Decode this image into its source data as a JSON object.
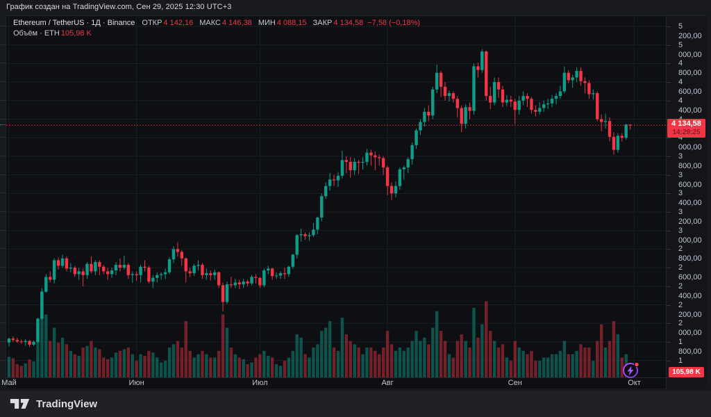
{
  "header": {
    "attribution": "График создан на TradingView.com, Сен 29, 2025 12:30 UTC+3"
  },
  "legend": {
    "symbol_title": "Ethereum / TetherUS · 1Д · Binance",
    "ohlc": [
      {
        "label": "ОТКР",
        "value": "4 142,16"
      },
      {
        "label": "МАКС",
        "value": "4 146,38"
      },
      {
        "label": "МИН",
        "value": "4 088,15"
      },
      {
        "label": "ЗАКР",
        "value": "4 134,58"
      }
    ],
    "change": "−7,58 (−0,18%)",
    "volume_row": {
      "label": "Объём · ETH",
      "value": "105,98 K"
    }
  },
  "last_price": {
    "value": 4134.58,
    "display": "4 134,58",
    "countdown": "14:29:25"
  },
  "volume_badge": "105,98 K",
  "footer": {
    "brand": "TradingView"
  },
  "colors": {
    "up": "#0f9d8a",
    "down": "#f23645",
    "vol_up": "rgba(15,157,138,0.48)",
    "vol_down": "rgba(242,54,69,0.45)",
    "grid": "#1b1e26",
    "accent_red": "#f23645",
    "purple": "#a04ef5",
    "dot_red": "#fb4a3e"
  },
  "price_axis": {
    "gridlines": [
      {
        "price": 5200,
        "label": "5 200,00"
      },
      {
        "price": 5000,
        "label": "5 000,00"
      },
      {
        "price": 4800,
        "label": "4 800,00"
      },
      {
        "price": 4600,
        "label": "4 600,00"
      },
      {
        "price": 4400,
        "label": "4 400,00"
      },
      {
        "price": 4200,
        "label": "4 200,00"
      },
      {
        "price": 4000,
        "label": "4 000,00"
      },
      {
        "price": 3800,
        "label": "3 800,00"
      },
      {
        "price": 3600,
        "label": "3 600,00"
      },
      {
        "price": 3400,
        "label": "3 400,00"
      },
      {
        "price": 3200,
        "label": "3 200,00"
      },
      {
        "price": 3000,
        "label": "3 000,00"
      },
      {
        "price": 2800,
        "label": "2 800,00"
      },
      {
        "price": 2600,
        "label": "2 600,00"
      },
      {
        "price": 2400,
        "label": "2 400,00"
      },
      {
        "price": 2200,
        "label": "2 200,00"
      },
      {
        "price": 2000,
        "label": "2 000,00"
      },
      {
        "price": 1800,
        "label": "1 800,00"
      },
      {
        "price": 1600,
        "label": "1 600,00"
      }
    ]
  },
  "chart_data": {
    "type": "candlestick",
    "title": "Ethereum / TetherUS",
    "interval": "1Д",
    "exchange": "Binance",
    "date_range": "2025-05-01 to 2025-09-29",
    "today_ohlc": {
      "open": 4142.16,
      "high": 4146.38,
      "low": 4088.15,
      "close": 4134.58,
      "change": -7.58,
      "change_pct": -0.18
    },
    "today_volume_k_eth": 105.98,
    "price_axis_visible_range": [
      1418,
      5312
    ],
    "grid": true,
    "months": [
      {
        "label": "Май",
        "index": 0
      },
      {
        "label": "Июн",
        "index": 31
      },
      {
        "label": "Июл",
        "index": 61
      },
      {
        "label": "Авг",
        "index": 92
      },
      {
        "label": "Сен",
        "index": 123
      },
      {
        "label": "Окт",
        "index": 152
      }
    ],
    "volume_unit": "K ETH",
    "candles_format": [
      "open",
      "high",
      "low",
      "close",
      "volume_k"
    ],
    "candles": [
      [
        1793,
        1845,
        1750,
        1835,
        620
      ],
      [
        1835,
        1860,
        1800,
        1820,
        580
      ],
      [
        1820,
        1845,
        1790,
        1805,
        400
      ],
      [
        1805,
        1825,
        1780,
        1800,
        350
      ],
      [
        1800,
        1830,
        1760,
        1810,
        420
      ],
      [
        1810,
        1820,
        1745,
        1770,
        540
      ],
      [
        1770,
        1815,
        1755,
        1800,
        480
      ],
      [
        1800,
        2060,
        1790,
        2050,
        1650
      ],
      [
        2050,
        2380,
        2040,
        2340,
        2600
      ],
      [
        2340,
        2530,
        2330,
        2500,
        1900
      ],
      [
        2500,
        2560,
        2440,
        2470,
        1100
      ],
      [
        2470,
        2700,
        2430,
        2680,
        1500
      ],
      [
        2680,
        2710,
        2580,
        2620,
        1050
      ],
      [
        2620,
        2738,
        2600,
        2700,
        1200
      ],
      [
        2700,
        2720,
        2560,
        2590,
        1000
      ],
      [
        2590,
        2650,
        2550,
        2600,
        800
      ],
      [
        2600,
        2620,
        2500,
        2530,
        700
      ],
      [
        2530,
        2600,
        2470,
        2560,
        650
      ],
      [
        2560,
        2590,
        2400,
        2520,
        900
      ],
      [
        2520,
        2660,
        2480,
        2640,
        950
      ],
      [
        2640,
        2720,
        2540,
        2560,
        1100
      ],
      [
        2560,
        2680,
        2520,
        2660,
        900
      ],
      [
        2660,
        2680,
        2520,
        2610,
        850
      ],
      [
        2610,
        2630,
        2530,
        2560,
        600
      ],
      [
        2560,
        2600,
        2470,
        2530,
        550
      ],
      [
        2530,
        2600,
        2490,
        2570,
        600
      ],
      [
        2570,
        2660,
        2520,
        2630,
        750
      ],
      [
        2630,
        2700,
        2560,
        2600,
        800
      ],
      [
        2600,
        2730,
        2580,
        2630,
        850
      ],
      [
        2630,
        2650,
        2480,
        2520,
        900
      ],
      [
        2520,
        2560,
        2440,
        2530,
        700
      ],
      [
        2530,
        2560,
        2460,
        2520,
        500
      ],
      [
        2520,
        2630,
        2440,
        2610,
        700
      ],
      [
        2610,
        2680,
        2560,
        2600,
        650
      ],
      [
        2600,
        2620,
        2430,
        2450,
        800
      ],
      [
        2450,
        2520,
        2380,
        2490,
        750
      ],
      [
        2490,
        2550,
        2440,
        2520,
        600
      ],
      [
        2520,
        2550,
        2470,
        2530,
        450
      ],
      [
        2530,
        2590,
        2480,
        2550,
        500
      ],
      [
        2550,
        2710,
        2530,
        2690,
        900
      ],
      [
        2690,
        2830,
        2650,
        2800,
        1000
      ],
      [
        2800,
        2873,
        2720,
        2770,
        1100
      ],
      [
        2770,
        2790,
        2620,
        2700,
        900
      ],
      [
        2700,
        2710,
        2440,
        2560,
        1700
      ],
      [
        2560,
        2600,
        2500,
        2540,
        800
      ],
      [
        2540,
        2640,
        2510,
        2620,
        600
      ],
      [
        2620,
        2680,
        2570,
        2630,
        700
      ],
      [
        2630,
        2650,
        2480,
        2520,
        800
      ],
      [
        2520,
        2590,
        2470,
        2540,
        700
      ],
      [
        2540,
        2570,
        2460,
        2520,
        600
      ],
      [
        2520,
        2580,
        2470,
        2550,
        600
      ],
      [
        2550,
        2560,
        2380,
        2410,
        800
      ],
      [
        2410,
        2440,
        2130,
        2230,
        1900
      ],
      [
        2230,
        2450,
        2210,
        2420,
        1500
      ],
      [
        2420,
        2500,
        2380,
        2410,
        900
      ],
      [
        2410,
        2480,
        2380,
        2440,
        700
      ],
      [
        2440,
        2470,
        2370,
        2420,
        600
      ],
      [
        2420,
        2480,
        2380,
        2450,
        550
      ],
      [
        2450,
        2470,
        2400,
        2430,
        400
      ],
      [
        2430,
        2520,
        2410,
        2500,
        450
      ],
      [
        2500,
        2530,
        2430,
        2490,
        600
      ],
      [
        2490,
        2500,
        2380,
        2410,
        700
      ],
      [
        2410,
        2590,
        2390,
        2570,
        800
      ],
      [
        2570,
        2620,
        2530,
        2590,
        650
      ],
      [
        2590,
        2600,
        2470,
        2510,
        600
      ],
      [
        2510,
        2550,
        2480,
        2515,
        400
      ],
      [
        2515,
        2560,
        2480,
        2540,
        350
      ],
      [
        2540,
        2600,
        2480,
        2530,
        500
      ],
      [
        2530,
        2620,
        2500,
        2610,
        600
      ],
      [
        2610,
        2750,
        2590,
        2740,
        800
      ],
      [
        2740,
        2960,
        2700,
        2950,
        1300
      ],
      [
        2950,
        3020,
        2880,
        2960,
        1200
      ],
      [
        2960,
        2980,
        2900,
        2940,
        700
      ],
      [
        2940,
        2980,
        2890,
        2950,
        600
      ],
      [
        2950,
        3080,
        2930,
        3010,
        900
      ],
      [
        3010,
        3150,
        2960,
        3140,
        1000
      ],
      [
        3140,
        3400,
        3100,
        3370,
        1400
      ],
      [
        3370,
        3520,
        3340,
        3480,
        1500
      ],
      [
        3480,
        3620,
        3430,
        3550,
        1700
      ],
      [
        3550,
        3600,
        3480,
        3540,
        900
      ],
      [
        3540,
        3630,
        3470,
        3590,
        800
      ],
      [
        3590,
        3860,
        3560,
        3760,
        1800
      ],
      [
        3760,
        3800,
        3620,
        3740,
        1300
      ],
      [
        3740,
        3790,
        3570,
        3650,
        1100
      ],
      [
        3650,
        3780,
        3600,
        3740,
        1000
      ],
      [
        3740,
        3760,
        3610,
        3730,
        900
      ],
      [
        3730,
        3790,
        3660,
        3740,
        700
      ],
      [
        3740,
        3880,
        3700,
        3840,
        900
      ],
      [
        3840,
        3870,
        3700,
        3810,
        900
      ],
      [
        3810,
        3850,
        3650,
        3790,
        800
      ],
      [
        3790,
        3820,
        3700,
        3780,
        700
      ],
      [
        3780,
        3800,
        3600,
        3680,
        900
      ],
      [
        3680,
        3700,
        3380,
        3480,
        1400
      ],
      [
        3480,
        3520,
        3330,
        3400,
        1000
      ],
      [
        3400,
        3530,
        3360,
        3480,
        800
      ],
      [
        3480,
        3680,
        3440,
        3660,
        900
      ],
      [
        3660,
        3700,
        3550,
        3680,
        800
      ],
      [
        3680,
        3790,
        3620,
        3770,
        900
      ],
      [
        3770,
        3950,
        3710,
        3920,
        1100
      ],
      [
        3920,
        4100,
        3880,
        4080,
        1400
      ],
      [
        4080,
        4200,
        4030,
        4170,
        1100
      ],
      [
        4170,
        4320,
        4120,
        4280,
        1200
      ],
      [
        4280,
        4350,
        4180,
        4240,
        1000
      ],
      [
        4240,
        4550,
        4200,
        4520,
        1500
      ],
      [
        4520,
        4790,
        4480,
        4700,
        2000
      ],
      [
        4700,
        4720,
        4440,
        4550,
        1400
      ],
      [
        4550,
        4600,
        4400,
        4450,
        1100
      ],
      [
        4450,
        4510,
        4390,
        4480,
        700
      ],
      [
        4480,
        4500,
        4380,
        4420,
        600
      ],
      [
        4420,
        4450,
        4220,
        4320,
        1100
      ],
      [
        4320,
        4350,
        4060,
        4150,
        1300
      ],
      [
        4150,
        4360,
        4100,
        4330,
        1100
      ],
      [
        4330,
        4380,
        4200,
        4290,
        900
      ],
      [
        4290,
        4800,
        4250,
        4770,
        2100
      ],
      [
        4770,
        4810,
        4650,
        4730,
        1200
      ],
      [
        4730,
        4955,
        4700,
        4930,
        1600
      ],
      [
        4930,
        4940,
        4400,
        4450,
        2300
      ],
      [
        4450,
        4550,
        4310,
        4380,
        1400
      ],
      [
        4380,
        4650,
        4350,
        4600,
        1100
      ],
      [
        4600,
        4650,
        4430,
        4520,
        900
      ],
      [
        4520,
        4560,
        4330,
        4380,
        1000
      ],
      [
        4380,
        4460,
        4340,
        4410,
        600
      ],
      [
        4410,
        4450,
        4330,
        4390,
        500
      ],
      [
        4390,
        4420,
        4150,
        4300,
        1100
      ],
      [
        4300,
        4450,
        4250,
        4400,
        900
      ],
      [
        4400,
        4500,
        4350,
        4450,
        800
      ],
      [
        4450,
        4480,
        4330,
        4420,
        700
      ],
      [
        4420,
        4440,
        4260,
        4300,
        800
      ],
      [
        4300,
        4350,
        4230,
        4280,
        500
      ],
      [
        4280,
        4380,
        4250,
        4320,
        500
      ],
      [
        4320,
        4400,
        4280,
        4360,
        600
      ],
      [
        4360,
        4420,
        4310,
        4370,
        600
      ],
      [
        4370,
        4460,
        4330,
        4420,
        700
      ],
      [
        4420,
        4480,
        4360,
        4450,
        700
      ],
      [
        4450,
        4560,
        4420,
        4500,
        800
      ],
      [
        4500,
        4770,
        4480,
        4700,
        1100
      ],
      [
        4700,
        4730,
        4590,
        4620,
        700
      ],
      [
        4620,
        4680,
        4540,
        4650,
        700
      ],
      [
        4650,
        4760,
        4600,
        4720,
        800
      ],
      [
        4720,
        4760,
        4560,
        4610,
        1000
      ],
      [
        4610,
        4650,
        4480,
        4590,
        900
      ],
      [
        4590,
        4620,
        4420,
        4470,
        900
      ],
      [
        4470,
        4520,
        4410,
        4480,
        500
      ],
      [
        4480,
        4500,
        4180,
        4200,
        1100
      ],
      [
        4200,
        4250,
        4070,
        4170,
        1600
      ],
      [
        4170,
        4260,
        4100,
        4180,
        900
      ],
      [
        4180,
        4220,
        3960,
        4010,
        1100
      ],
      [
        4010,
        4060,
        3820,
        3870,
        1700
      ],
      [
        3870,
        4050,
        3840,
        4020,
        1300
      ],
      [
        4020,
        4050,
        3960,
        4000,
        600
      ],
      [
        4000,
        4150,
        3980,
        4142,
        700
      ],
      [
        4142.16,
        4146.38,
        4088.15,
        4134.58,
        105.98
      ]
    ]
  }
}
